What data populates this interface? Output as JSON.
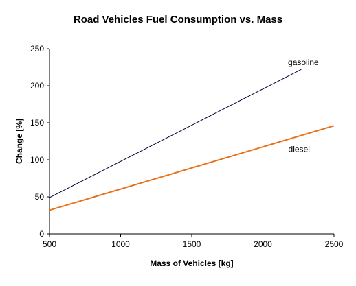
{
  "chart_data": {
    "type": "line",
    "title": "Road Vehicles Fuel Consumption vs. Mass",
    "xlabel": "Mass of Vehicles [kg]",
    "ylabel": "Change [%]",
    "xlim": [
      500,
      2500
    ],
    "ylim": [
      0,
      250
    ],
    "xticks": [
      500,
      1000,
      1500,
      2000,
      2500
    ],
    "yticks": [
      0,
      50,
      100,
      150,
      200,
      250
    ],
    "grid": false,
    "legend": "none (series labelled directly on lines)",
    "series": [
      {
        "name": "gasoline",
        "color": "#000033",
        "points": [
          [
            500,
            49
          ],
          [
            2270,
            222
          ]
        ]
      },
      {
        "name": "diesel",
        "color": "#E8711A",
        "points": [
          [
            500,
            32
          ],
          [
            2500,
            146
          ]
        ]
      }
    ]
  }
}
